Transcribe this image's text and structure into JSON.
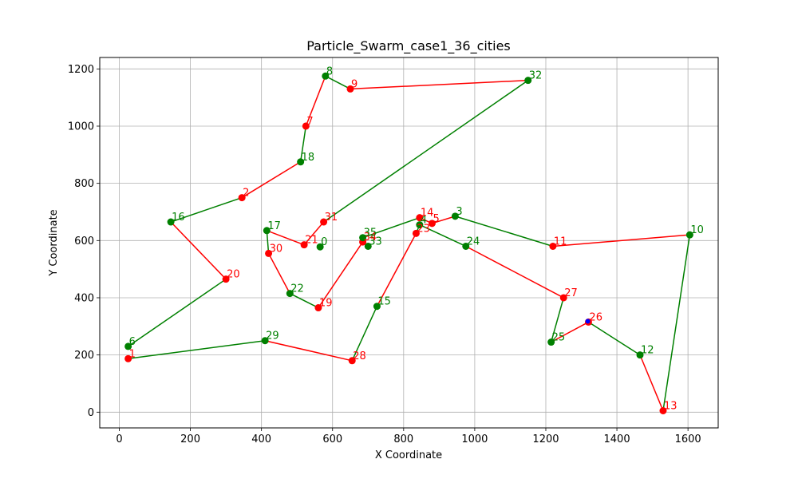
{
  "chart_data": {
    "type": "line",
    "title": "Particle_Swarm_case1_36_cities",
    "xlabel": "X Coordinate",
    "ylabel": "Y Coordinate",
    "xlim": [
      -55,
      1685
    ],
    "ylim": [
      -55,
      1240
    ],
    "xticks": [
      0,
      200,
      400,
      600,
      800,
      1000,
      1200,
      1400,
      1600
    ],
    "yticks": [
      0,
      200,
      400,
      600,
      800,
      1000,
      1200
    ],
    "grid": true,
    "colors": {
      "green": "#008000",
      "red": "#ff0000",
      "blue": "#0000ff"
    },
    "cities": [
      {
        "id": "0",
        "x": 565,
        "y": 578,
        "color": "green"
      },
      {
        "id": "1",
        "x": 25,
        "y": 187,
        "color": "red"
      },
      {
        "id": "2",
        "x": 345,
        "y": 750,
        "color": "red"
      },
      {
        "id": "3",
        "x": 945,
        "y": 685,
        "color": "green"
      },
      {
        "id": "4",
        "x": 845,
        "y": 655,
        "color": "green"
      },
      {
        "id": "5",
        "x": 880,
        "y": 660,
        "color": "red"
      },
      {
        "id": "6",
        "x": 25,
        "y": 230,
        "color": "green"
      },
      {
        "id": "7",
        "x": 525,
        "y": 1000,
        "color": "red"
      },
      {
        "id": "8",
        "x": 580,
        "y": 1175,
        "color": "green"
      },
      {
        "id": "9",
        "x": 650,
        "y": 1130,
        "color": "red"
      },
      {
        "id": "10",
        "x": 1605,
        "y": 620,
        "color": "green"
      },
      {
        "id": "11",
        "x": 1220,
        "y": 580,
        "color": "red"
      },
      {
        "id": "12",
        "x": 1465,
        "y": 200,
        "color": "green"
      },
      {
        "id": "13",
        "x": 1530,
        "y": 5,
        "color": "red"
      },
      {
        "id": "14",
        "x": 845,
        "y": 680,
        "color": "red"
      },
      {
        "id": "15",
        "x": 725,
        "y": 370,
        "color": "green"
      },
      {
        "id": "16",
        "x": 145,
        "y": 665,
        "color": "green"
      },
      {
        "id": "17",
        "x": 415,
        "y": 635,
        "color": "green"
      },
      {
        "id": "18",
        "x": 510,
        "y": 875,
        "color": "green"
      },
      {
        "id": "19",
        "x": 560,
        "y": 365,
        "color": "red"
      },
      {
        "id": "20",
        "x": 300,
        "y": 465,
        "color": "red"
      },
      {
        "id": "21",
        "x": 520,
        "y": 585,
        "color": "red"
      },
      {
        "id": "22",
        "x": 480,
        "y": 415,
        "color": "green"
      },
      {
        "id": "23",
        "x": 835,
        "y": 625,
        "color": "red"
      },
      {
        "id": "24",
        "x": 975,
        "y": 580,
        "color": "green"
      },
      {
        "id": "25",
        "x": 1215,
        "y": 245,
        "color": "green"
      },
      {
        "id": "26",
        "x": 1320,
        "y": 315,
        "color": "red"
      },
      {
        "id": "27",
        "x": 1250,
        "y": 400,
        "color": "red"
      },
      {
        "id": "28",
        "x": 655,
        "y": 180,
        "color": "red"
      },
      {
        "id": "29",
        "x": 410,
        "y": 250,
        "color": "green"
      },
      {
        "id": "30",
        "x": 420,
        "y": 555,
        "color": "red"
      },
      {
        "id": "31",
        "x": 575,
        "y": 665,
        "color": "red"
      },
      {
        "id": "32",
        "x": 1150,
        "y": 1160,
        "color": "green"
      },
      {
        "id": "33",
        "x": 700,
        "y": 580,
        "color": "green"
      },
      {
        "id": "34",
        "x": 685,
        "y": 595,
        "color": "red"
      },
      {
        "id": "35",
        "x": 685,
        "y": 610,
        "color": "green"
      }
    ],
    "route": [
      "6",
      "20",
      "16",
      "2",
      "18",
      "7",
      "8",
      "9",
      "32",
      "31",
      "21",
      "17",
      "30",
      "22",
      "19",
      "34",
      "35",
      "14",
      "5",
      "3",
      "11",
      "10",
      "13",
      "12",
      "26",
      "25",
      "27",
      "24",
      "4",
      "23",
      "15",
      "28",
      "29",
      "1"
    ],
    "marker_overrides": [
      {
        "id": "26",
        "color": "blue",
        "x": 1318,
        "y": 318
      }
    ]
  }
}
